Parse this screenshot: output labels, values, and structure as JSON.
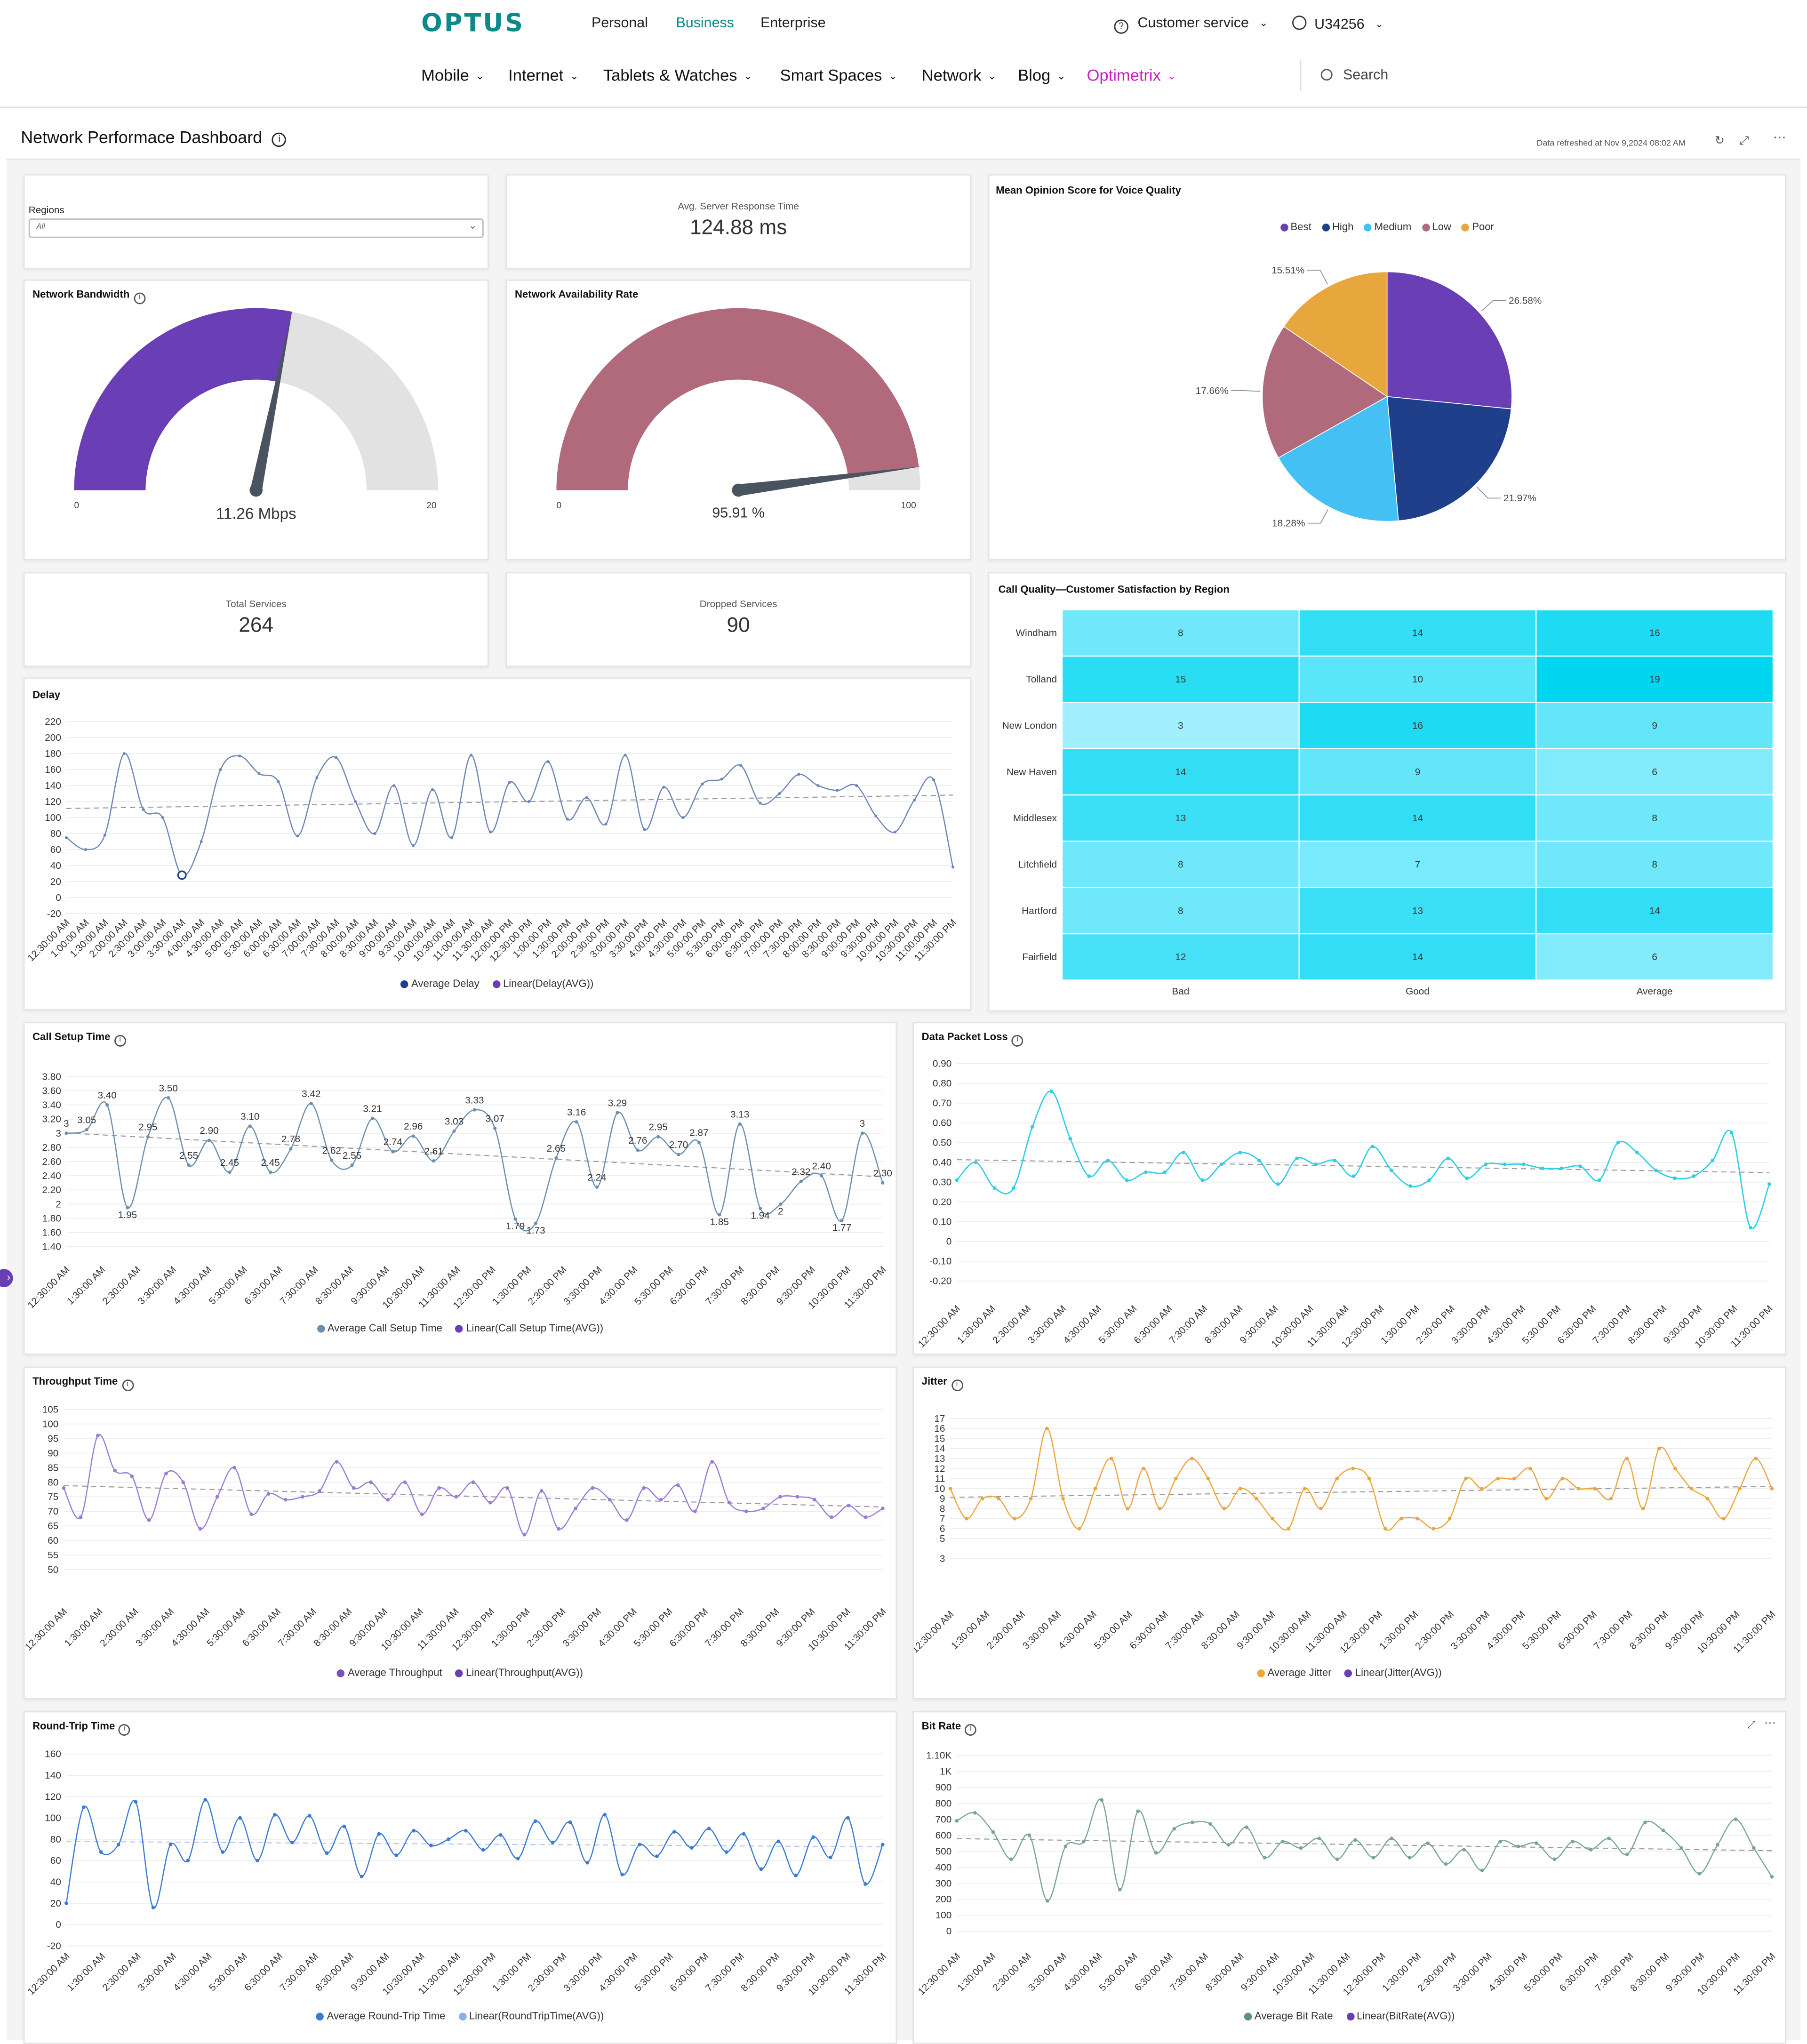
{
  "brand": {
    "logo": "OPTUS",
    "teal": "#0b8a8a",
    "magenta": "#c61ec0"
  },
  "topnav": {
    "links": [
      "Personal",
      "Business",
      "Enterprise"
    ],
    "active": "Business",
    "customer_service": "Customer service",
    "user_id": "U34256"
  },
  "mainnav": {
    "items": [
      "Mobile",
      "Internet",
      "Tablets & Watches",
      "Smart Spaces",
      "Network",
      "Blog",
      "Optimetrix"
    ],
    "active": "Optimetrix",
    "search_placeholder": "Search"
  },
  "dashboard": {
    "title": "Network Performace Dashboard",
    "refreshed": "Data refreshed at Nov 9,2024 08:02 AM"
  },
  "filters": {
    "regions_label": "Regions",
    "regions_value": "All"
  },
  "kpis": {
    "avg_response_label": "Avg. Server Response Time",
    "avg_response_value": "124.88 ms",
    "total_services_label": "Total Services",
    "total_services_value": "264",
    "dropped_services_label": "Dropped Services",
    "dropped_services_value": "90"
  },
  "gauges": {
    "bandwidth": {
      "title": "Network Bandwidth",
      "value": 11.26,
      "min": 0,
      "max": 20,
      "value_label": "11.26 Mbps",
      "min_label": "0",
      "max_label": "20",
      "color": "#6a3fb5"
    },
    "availability": {
      "title": "Network Availability Rate",
      "value": 95.91,
      "min": 0,
      "max": 100,
      "value_label": "95.91 %",
      "min_label": "0",
      "max_label": "100",
      "color": "#b06a7b"
    }
  },
  "pie": {
    "title": "Mean Opinion Score for Voice Quality",
    "legend": [
      {
        "name": "Best",
        "color": "#6a3fb5"
      },
      {
        "name": "High",
        "color": "#1f3f8a"
      },
      {
        "name": "Medium",
        "color": "#45c0f5"
      },
      {
        "name": "Low",
        "color": "#b06a7b"
      },
      {
        "name": "Poor",
        "color": "#e7a73c"
      }
    ],
    "slices": [
      {
        "name": "Best",
        "value": 26.58,
        "label": "26.58%"
      },
      {
        "name": "High",
        "value": 21.97,
        "label": "21.97%"
      },
      {
        "name": "Medium",
        "value": 18.28,
        "label": "18.28%"
      },
      {
        "name": "Low",
        "value": 17.66,
        "label": "17.66%"
      },
      {
        "name": "Poor",
        "value": 15.51,
        "label": "15.51%"
      }
    ]
  },
  "heatmap": {
    "title": "Call Quality—Customer Satisfaction by Region",
    "rows": [
      "Windham",
      "Tolland",
      "New London",
      "New Haven",
      "Middlesex",
      "Litchfield",
      "Hartford",
      "Fairfield"
    ],
    "cols": [
      "Bad",
      "Good",
      "Average"
    ],
    "values": [
      [
        8,
        14,
        16
      ],
      [
        15,
        10,
        19
      ],
      [
        3,
        16,
        9
      ],
      [
        14,
        9,
        6
      ],
      [
        13,
        14,
        8
      ],
      [
        8,
        7,
        8
      ],
      [
        8,
        13,
        14
      ],
      [
        12,
        14,
        6
      ]
    ]
  },
  "delay": {
    "title": "Delay",
    "ticks": [
      "220",
      "200",
      "180",
      "160",
      "140",
      "120",
      "100",
      "80",
      "60",
      "40",
      "20",
      "0",
      "-20"
    ],
    "xlabels": [
      "12:30:00 AM",
      "1:00:00 AM",
      "1:30:00 AM",
      "2:00:00 AM",
      "2:30:00 AM",
      "3:00:00 AM",
      "3:30:00 AM",
      "4:00:00 AM",
      "4:30:00 AM",
      "5:00:00 AM",
      "5:30:00 AM",
      "6:00:00 AM",
      "6:30:00 AM",
      "7:00:00 AM",
      "7:30:00 AM",
      "8:00:00 AM",
      "8:30:00 AM",
      "9:00:00 AM",
      "9:30:00 AM",
      "10:00:00 AM",
      "10:30:00 AM",
      "11:00:00 AM",
      "11:30:00 AM",
      "12:00:00 PM",
      "12:30:00 PM",
      "1:00:00 PM",
      "1:30:00 PM",
      "2:00:00 PM",
      "2:30:00 PM",
      "3:00:00 PM",
      "3:30:00 PM",
      "4:00:00 PM",
      "4:30:00 PM",
      "5:00:00 PM",
      "5:30:00 PM",
      "6:00:00 PM",
      "6:30:00 PM",
      "7:00:00 PM",
      "7:30:00 PM",
      "8:00:00 PM",
      "8:30:00 PM",
      "9:00:00 PM",
      "9:30:00 PM",
      "10:00:00 PM",
      "10:30:00 PM",
      "11:00:00 PM",
      "11:30:00 PM"
    ],
    "legend": [
      "Average Delay",
      "Linear(Delay(AVG))"
    ]
  },
  "hourly_xlabels": [
    "12:30:00 AM",
    "1:30:00 AM",
    "2:30:00 AM",
    "3:30:00 AM",
    "4:30:00 AM",
    "5:30:00 AM",
    "6:30:00 AM",
    "7:30:00 AM",
    "8:30:00 AM",
    "9:30:00 AM",
    "10:30:00 AM",
    "11:30:00 AM",
    "12:30:00 PM",
    "1:30:00 PM",
    "2:30:00 PM",
    "3:30:00 PM",
    "4:30:00 PM",
    "5:30:00 PM",
    "6:30:00 PM",
    "7:30:00 PM",
    "8:30:00 PM",
    "9:30:00 PM",
    "10:30:00 PM",
    "11:30:00 PM"
  ],
  "call_setup": {
    "title": "Call Setup Time",
    "ticks": [
      "3.80",
      "3.60",
      "3.40",
      "3.20",
      "3",
      "2.80",
      "2.60",
      "2.40",
      "2.20",
      "2",
      "1.80",
      "1.60",
      "1.40"
    ],
    "labels": [
      "3",
      "3.05",
      "3.40",
      "1.95",
      "2.95",
      "3.50",
      "2.55",
      "2.90",
      "2.45",
      "3.10",
      "2.45",
      "2.78",
      "3.42",
      "2.62",
      "2.55",
      "3.21",
      "2.74",
      "2.96",
      "2.61",
      "3.03",
      "3.33",
      "3.07",
      "1.79",
      "1.73",
      "2.65",
      "3.16",
      "2.24",
      "3.29",
      "2.76",
      "2.95",
      "2.70",
      "2.87",
      "1.85",
      "3.13",
      "1.94",
      "2",
      "2.32",
      "2.40",
      "1.77",
      "3",
      "2.30"
    ],
    "legend": [
      "Average Call Setup Time",
      "Linear(Call Setup Time(AVG))"
    ]
  },
  "packet_loss": {
    "title": "Data Packet Loss",
    "ticks": [
      "0.90",
      "0.80",
      "0.70",
      "0.60",
      "0.50",
      "0.40",
      "0.30",
      "0.20",
      "0.10",
      "0",
      "-0.10",
      "-0.20"
    ]
  },
  "throughput": {
    "title": "Throughput Time",
    "ticks": [
      "105",
      "100",
      "95",
      "90",
      "85",
      "80",
      "75",
      "70",
      "65",
      "60",
      "55",
      "50"
    ],
    "legend": [
      "Average Throughput",
      "Linear(Throughput(AVG))"
    ]
  },
  "jitter": {
    "title": "Jitter",
    "ticks": [
      "17",
      "16",
      "15",
      "14",
      "13",
      "12",
      "11",
      "10",
      "9",
      "8",
      "7",
      "6",
      "5",
      "3"
    ],
    "legend": [
      "Average Jitter",
      "Linear(Jitter(AVG))"
    ]
  },
  "rtt": {
    "title": "Round-Trip Time",
    "ticks": [
      "160",
      "140",
      "120",
      "100",
      "80",
      "60",
      "40",
      "20",
      "0",
      "-20"
    ],
    "legend": [
      "Average Round-Trip Time",
      "Linear(RoundTripTime(AVG))"
    ]
  },
  "bitrate": {
    "title": "Bit Rate",
    "ticks": [
      "1.10K",
      "1K",
      "900",
      "800",
      "700",
      "600",
      "500",
      "400",
      "300",
      "200",
      "100",
      "0"
    ],
    "legend": [
      "Average Bit Rate",
      "Linear(BitRate(AVG))"
    ]
  },
  "chart_data": [
    {
      "type": "line",
      "title": "Delay",
      "series": [
        {
          "name": "Average Delay",
          "values": [
            75,
            60,
            78,
            180,
            110,
            100,
            28,
            70,
            160,
            177,
            155,
            145,
            77,
            150,
            175,
            120,
            80,
            140,
            65,
            135,
            75,
            178,
            82,
            144,
            120,
            170,
            98,
            125,
            92,
            178,
            85,
            138,
            100,
            142,
            148,
            165,
            118,
            130,
            154,
            140,
            134,
            140,
            102,
            82,
            122,
            147,
            38
          ]
        }
      ],
      "ylim": [
        -20,
        220
      ]
    },
    {
      "type": "line",
      "title": "Call Setup Time",
      "series": [
        {
          "name": "Average Call Setup Time",
          "values": [
            3,
            3.05,
            3.4,
            1.95,
            2.95,
            3.5,
            2.55,
            2.9,
            2.45,
            3.1,
            2.45,
            2.78,
            3.42,
            2.62,
            2.55,
            3.21,
            2.74,
            2.96,
            2.61,
            3.03,
            3.33,
            3.07,
            1.79,
            1.73,
            2.65,
            3.16,
            2.24,
            3.29,
            2.76,
            2.95,
            2.7,
            2.87,
            1.85,
            3.13,
            1.94,
            2,
            2.32,
            2.4,
            1.77,
            3,
            2.3
          ]
        }
      ],
      "ylim": [
        1.4,
        3.8
      ]
    },
    {
      "type": "line",
      "title": "Data Packet Loss",
      "series": [
        {
          "name": "Data Packet Loss",
          "values": [
            0.31,
            0.4,
            0.27,
            0.27,
            0.58,
            0.76,
            0.52,
            0.33,
            0.41,
            0.31,
            0.35,
            0.35,
            0.45,
            0.31,
            0.39,
            0.45,
            0.41,
            0.29,
            0.42,
            0.39,
            0.41,
            0.33,
            0.48,
            0.36,
            0.28,
            0.31,
            0.42,
            0.32,
            0.39,
            0.39,
            0.39,
            0.37,
            0.37,
            0.38,
            0.31,
            0.5,
            0.45,
            0.36,
            0.32,
            0.33,
            0.41,
            0.55,
            0.07,
            0.29
          ]
        }
      ],
      "ylim": [
        -0.2,
        0.9
      ]
    },
    {
      "type": "line",
      "title": "Throughput Time",
      "series": [
        {
          "name": "Average Throughput",
          "values": [
            78,
            68,
            96,
            84,
            82,
            67,
            83,
            80,
            64,
            75,
            85,
            69,
            76,
            74,
            75,
            77,
            87,
            78,
            80,
            74,
            80,
            69,
            78,
            75,
            80,
            73,
            78,
            62,
            77,
            64,
            71,
            78,
            74,
            67,
            78,
            74,
            79,
            70,
            87,
            73,
            70,
            71,
            75,
            75,
            74,
            68,
            72,
            68,
            71
          ]
        }
      ],
      "ylim": [
        50,
        105
      ]
    },
    {
      "type": "line",
      "title": "Jitter",
      "series": [
        {
          "name": "Average Jitter",
          "values": [
            10,
            7,
            9,
            9,
            7,
            9,
            16,
            9,
            6,
            10,
            13,
            8,
            12,
            8,
            11,
            13,
            11,
            8,
            10,
            9,
            7,
            6,
            10,
            8,
            11,
            12,
            11,
            6,
            7,
            7,
            6,
            7,
            11,
            10,
            11,
            11,
            12,
            9,
            11,
            10,
            10,
            9,
            13,
            8,
            14,
            12,
            10,
            9,
            7,
            10,
            13,
            10
          ]
        }
      ],
      "ylim": [
        3,
        17
      ]
    },
    {
      "type": "line",
      "title": "Round-Trip Time",
      "series": [
        {
          "name": "Average Round-Trip Time",
          "values": [
            20,
            110,
            68,
            75,
            115,
            16,
            75,
            60,
            117,
            68,
            100,
            60,
            103,
            77,
            102,
            67,
            92,
            45,
            85,
            65,
            88,
            74,
            80,
            88,
            70,
            84,
            62,
            97,
            77,
            96,
            58,
            103,
            47,
            75,
            64,
            87,
            72,
            90,
            68,
            85,
            52,
            78,
            46,
            82,
            63,
            100,
            38,
            75
          ]
        }
      ],
      "ylim": [
        -20,
        160
      ]
    },
    {
      "type": "line",
      "title": "Bit Rate",
      "series": [
        {
          "name": "Average Bit Rate",
          "values": [
            690,
            740,
            620,
            450,
            600,
            190,
            530,
            560,
            820,
            260,
            750,
            490,
            640,
            680,
            670,
            540,
            650,
            460,
            560,
            520,
            580,
            450,
            570,
            460,
            580,
            460,
            550,
            420,
            510,
            380,
            560,
            530,
            550,
            450,
            560,
            510,
            580,
            480,
            680,
            630,
            520,
            360,
            540,
            700,
            520,
            340
          ]
        }
      ],
      "ylim": [
        0,
        1100
      ]
    }
  ]
}
